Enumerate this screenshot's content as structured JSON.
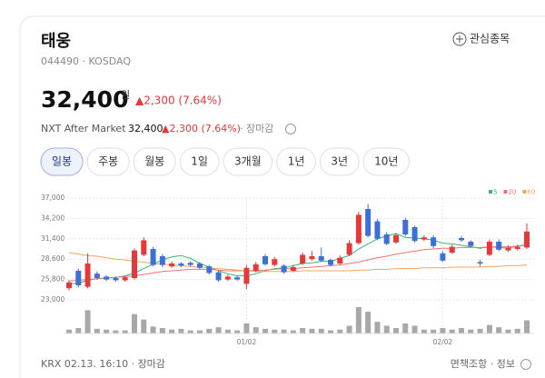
{
  "header": {
    "name": "태웅",
    "code": "044490 · KOSDAQ",
    "watch": "관심종목"
  },
  "price": {
    "value": "32,400",
    "unit": "원",
    "change": "▲2,300 (7.64%)"
  },
  "after_market": {
    "label": "NXT After Market",
    "value": "32,400",
    "change": "▲2,300 (7.64%)",
    "status": "· 장마감"
  },
  "tabs": [
    "일봉",
    "주봉",
    "월봉",
    "1일",
    "3개월",
    "1년",
    "3년",
    "10년"
  ],
  "selected_tab": 0,
  "chart_data": {
    "type": "candlestick",
    "categories": [
      null,
      null,
      null,
      null,
      null,
      null,
      null,
      null,
      null,
      null,
      null,
      null,
      null,
      null,
      null,
      null,
      null,
      null,
      null,
      "01/02",
      null,
      null,
      null,
      null,
      null,
      null,
      null,
      null,
      null,
      null,
      null,
      null,
      null,
      null,
      null,
      null,
      null,
      null,
      null,
      null,
      "02/02",
      null,
      null,
      null,
      null,
      null,
      null,
      null,
      null,
      null
    ],
    "open": [
      24600,
      27000,
      24800,
      26600,
      26200,
      26000,
      25700,
      26000,
      29200,
      30000,
      29000,
      27600,
      28000,
      28100,
      28000,
      27600,
      26800,
      25800,
      26100,
      25200,
      27000,
      29000,
      27800,
      27700,
      27000,
      28000,
      28600,
      29000,
      28500,
      28000,
      29200,
      30800,
      35500,
      33800,
      32000,
      30900,
      34000,
      33000,
      31300,
      31600,
      29400,
      29500,
      31500,
      31000,
      28200,
      29200,
      31000,
      29800,
      30000,
      30200
    ],
    "high": [
      25700,
      27300,
      29400,
      26900,
      26400,
      26200,
      26300,
      30100,
      31600,
      30300,
      29300,
      28300,
      28200,
      28300,
      28200,
      27800,
      27000,
      26500,
      26300,
      27800,
      28200,
      29300,
      28900,
      27900,
      27800,
      29500,
      29700,
      30200,
      28700,
      29100,
      31200,
      35100,
      36200,
      34100,
      32300,
      32200,
      34300,
      33200,
      31900,
      31900,
      29700,
      30600,
      31800,
      31200,
      28500,
      31300,
      31300,
      30500,
      30600,
      33500
    ],
    "low": [
      24300,
      24700,
      24600,
      25800,
      25600,
      25500,
      25500,
      25800,
      29000,
      27600,
      27500,
      27400,
      27500,
      27600,
      27200,
      26500,
      25500,
      25600,
      25600,
      24500,
      26800,
      27700,
      27600,
      26600,
      26800,
      27800,
      28400,
      28200,
      27600,
      27800,
      29000,
      30600,
      31600,
      31200,
      30500,
      30700,
      31800,
      30900,
      31100,
      30100,
      28200,
      29300,
      31000,
      30200,
      27600,
      29000,
      29700,
      29600,
      29800,
      30000
    ],
    "close": [
      25400,
      25000,
      28000,
      26000,
      25800,
      25700,
      26100,
      29800,
      31200,
      27800,
      27800,
      28000,
      27700,
      27800,
      27400,
      26700,
      25700,
      26200,
      25800,
      27400,
      27900,
      27900,
      28600,
      26800,
      27500,
      29200,
      29000,
      28400,
      27800,
      28800,
      30800,
      34700,
      31800,
      31400,
      30700,
      31900,
      32000,
      31100,
      31600,
      30400,
      28400,
      30300,
      31200,
      30400,
      28000,
      31000,
      29900,
      30200,
      30300,
      32400
    ],
    "up_color": "#e5383b",
    "down_color": "#3d6fd9",
    "series": [
      {
        "name": "5",
        "color": "#3cb371",
        "values": [
          25200,
          25300,
          25700,
          25900,
          26000,
          26100,
          26300,
          26700,
          27300,
          27900,
          28500,
          28900,
          29100,
          28700,
          28000,
          27500,
          27000,
          26600,
          26300,
          26300,
          26600,
          27000,
          27300,
          27400,
          27700,
          28000,
          28100,
          28300,
          28300,
          28700,
          29100,
          30000,
          30700,
          31400,
          31800,
          32100,
          31600,
          31500,
          31400,
          31200,
          30800,
          30700,
          30500,
          30300,
          30100,
          30300,
          30200,
          30100,
          30400,
          30600
        ]
      },
      {
        "name": "20",
        "color": "#f07474",
        "values": [
          25600,
          25700,
          25800,
          25900,
          26000,
          26100,
          26200,
          26300,
          26500,
          26700,
          26900,
          27000,
          27100,
          27200,
          27200,
          27200,
          27100,
          27000,
          27000,
          27000,
          27000,
          27100,
          27200,
          27300,
          27300,
          27400,
          27500,
          27600,
          27700,
          27800,
          28000,
          28200,
          28500,
          28800,
          29000,
          29300,
          29500,
          29700,
          29900,
          30000,
          30100,
          30100,
          30200,
          30200,
          30200,
          30300,
          30300,
          30300,
          30400,
          30500
        ]
      },
      {
        "name": "60",
        "color": "#f5a55a",
        "values": [
          29500,
          29300,
          29100,
          29000,
          28800,
          28600,
          28500,
          28300,
          28200,
          28000,
          27900,
          27800,
          27700,
          27600,
          27500,
          27400,
          27300,
          27200,
          27100,
          27000,
          26900,
          26900,
          26900,
          26900,
          26900,
          27000,
          27000,
          27000,
          27000,
          27000,
          27000,
          27100,
          27100,
          27200,
          27200,
          27300,
          27300,
          27300,
          27400,
          27400,
          27400,
          27500,
          27500,
          27500,
          27500,
          27600,
          27600,
          27700,
          27700,
          27800
        ]
      }
    ],
    "volumes": [
      5,
      7,
      30,
      6,
      5,
      4,
      4,
      25,
      18,
      9,
      7,
      5,
      6,
      4,
      4,
      6,
      8,
      5,
      4,
      13,
      8,
      6,
      5,
      5,
      4,
      7,
      6,
      6,
      4,
      5,
      10,
      34,
      28,
      15,
      10,
      7,
      13,
      10,
      5,
      5,
      7,
      5,
      7,
      5,
      6,
      11,
      8,
      5,
      6,
      17
    ],
    "volume_color": "#a8a8a8",
    "ylim": [
      23000,
      37000
    ],
    "yticks": [
      {
        "value": 23000,
        "label": "23,000"
      },
      {
        "value": 25800,
        "label": "25,800"
      },
      {
        "value": 28600,
        "label": "28,600"
      },
      {
        "value": 31400,
        "label": "31,400"
      },
      {
        "value": 34200,
        "label": "34,200"
      },
      {
        "value": 37000,
        "label": "37,000"
      }
    ],
    "grid": true
  },
  "footer": {
    "source": "KRX 02.13. 16:10 · 장마감",
    "links": "면책조항 · 정보"
  }
}
